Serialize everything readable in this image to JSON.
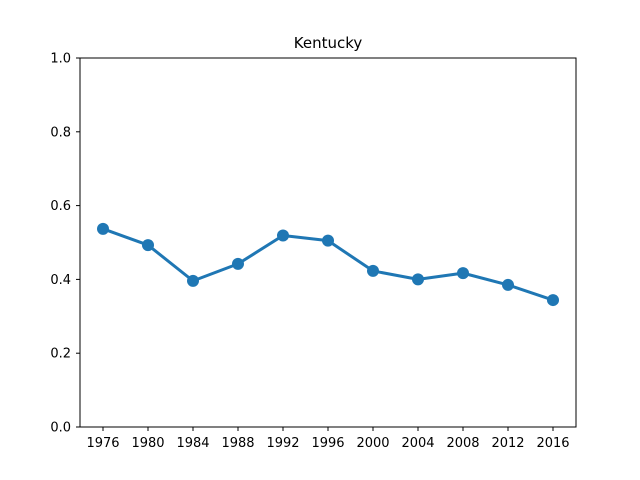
{
  "chart_data": {
    "type": "line",
    "title": "Kentucky",
    "xlabel": "",
    "ylabel": "",
    "x": [
      "1976",
      "1980",
      "1984",
      "1988",
      "1992",
      "1996",
      "2000",
      "2004",
      "2008",
      "2012",
      "2016"
    ],
    "series": [
      {
        "values": [
          0.537,
          0.493,
          0.396,
          0.442,
          0.519,
          0.505,
          0.423,
          0.4,
          0.417,
          0.385,
          0.344
        ]
      }
    ],
    "ylim": [
      0,
      1.0
    ],
    "yticks": [
      "0.0",
      "0.2",
      "0.4",
      "0.6",
      "0.8",
      "1.0"
    ],
    "grid": false,
    "colors": {
      "line": "#1f77b4",
      "axes": "#000000"
    }
  }
}
